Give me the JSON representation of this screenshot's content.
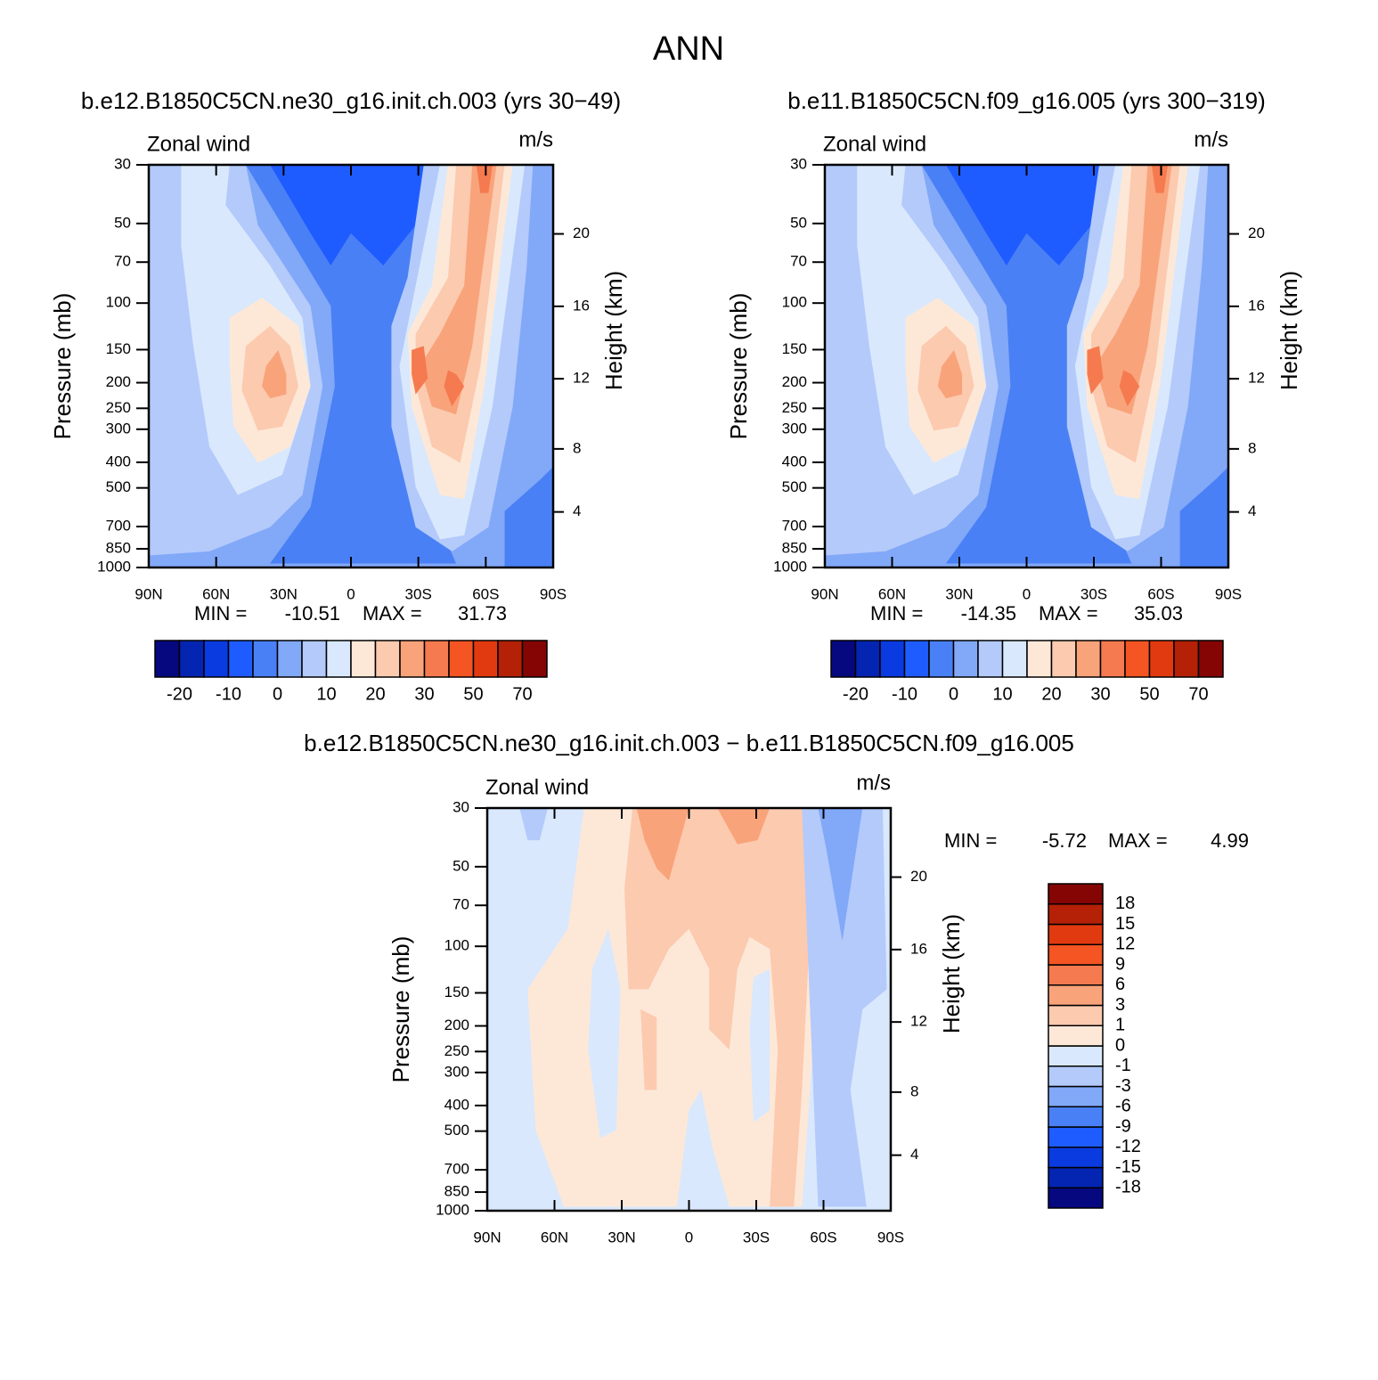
{
  "title": "ANN",
  "chart_data": [
    {
      "type": "contour",
      "title": "b.e12.B1850C5CN.ne30_g16.init.ch.003 (yrs 30−49)",
      "left_label": "Zonal wind",
      "right_label": "m/s",
      "ylabel": "Pressure (mb)",
      "y2label": "Height (km)",
      "xlim": [
        90,
        -90
      ],
      "xticks": [
        {
          "value": 90,
          "label": "90N"
        },
        {
          "value": 60,
          "label": "60N"
        },
        {
          "value": 30,
          "label": "30N"
        },
        0,
        {
          "value": -30,
          "label": "30S"
        },
        {
          "value": -60,
          "label": "60S"
        },
        {
          "value": -90,
          "label": "90S"
        }
      ],
      "ylim": [
        1000,
        30
      ],
      "yscale": "log",
      "yticks": [
        30,
        50,
        70,
        100,
        150,
        200,
        250,
        300,
        400,
        500,
        700,
        850,
        1000
      ],
      "y2ticks": [
        4,
        8,
        12,
        16,
        20
      ],
      "min_label": "MIN =",
      "min": -10.51,
      "max_label": "MAX =",
      "max": 31.73,
      "colorbar": {
        "orientation": "horizontal",
        "levels": [
          -20,
          -15,
          -10,
          -5,
          0,
          5,
          10,
          15,
          20,
          25,
          30,
          40,
          50,
          60,
          70
        ],
        "ticks": [
          -20,
          -10,
          0,
          10,
          20,
          30,
          50,
          70
        ],
        "colors": [
          "#06087f",
          "#0424b2",
          "#0a3be0",
          "#1f5cff",
          "#4a80f5",
          "#82a8f8",
          "#b3cafb",
          "#d9e8fc",
          "#fde8d8",
          "#fccaaf",
          "#f9a37b",
          "#f57a4f",
          "#f45523",
          "#e23a10",
          "#b52106",
          "#850505"
        ]
      }
    },
    {
      "type": "contour",
      "title": "b.e11.B1850C5CN.f09_g16.005 (yrs 300−319)",
      "left_label": "Zonal wind",
      "right_label": "m/s",
      "ylabel": "Pressure (mb)",
      "y2label": "Height (km)",
      "xlim": [
        90,
        -90
      ],
      "xticks": [
        {
          "value": 90,
          "label": "90N"
        },
        {
          "value": 60,
          "label": "60N"
        },
        {
          "value": 30,
          "label": "30N"
        },
        0,
        {
          "value": -30,
          "label": "30S"
        },
        {
          "value": -60,
          "label": "60S"
        },
        {
          "value": -90,
          "label": "90S"
        }
      ],
      "ylim": [
        1000,
        30
      ],
      "yscale": "log",
      "yticks": [
        30,
        50,
        70,
        100,
        150,
        200,
        250,
        300,
        400,
        500,
        700,
        850,
        1000
      ],
      "y2ticks": [
        4,
        8,
        12,
        16,
        20
      ],
      "min_label": "MIN =",
      "min": -14.35,
      "max_label": "MAX =",
      "max": 35.03,
      "colorbar": {
        "orientation": "horizontal",
        "levels": [
          -20,
          -15,
          -10,
          -5,
          0,
          5,
          10,
          15,
          20,
          25,
          30,
          40,
          50,
          60,
          70
        ],
        "ticks": [
          -20,
          -10,
          0,
          10,
          20,
          30,
          50,
          70
        ],
        "colors": [
          "#06087f",
          "#0424b2",
          "#0a3be0",
          "#1f5cff",
          "#4a80f5",
          "#82a8f8",
          "#b3cafb",
          "#d9e8fc",
          "#fde8d8",
          "#fccaaf",
          "#f9a37b",
          "#f57a4f",
          "#f45523",
          "#e23a10",
          "#b52106",
          "#850505"
        ]
      }
    },
    {
      "type": "contour",
      "title": "b.e12.B1850C5CN.ne30_g16.init.ch.003 − b.e11.B1850C5CN.f09_g16.005",
      "left_label": "Zonal wind",
      "right_label": "m/s",
      "ylabel": "Pressure (mb)",
      "y2label": "Height (km)",
      "xlim": [
        90,
        -90
      ],
      "xticks": [
        {
          "value": 90,
          "label": "90N"
        },
        {
          "value": 60,
          "label": "60N"
        },
        {
          "value": 30,
          "label": "30N"
        },
        0,
        {
          "value": -30,
          "label": "30S"
        },
        {
          "value": -60,
          "label": "60S"
        },
        {
          "value": -90,
          "label": "90S"
        }
      ],
      "ylim": [
        1000,
        30
      ],
      "yscale": "log",
      "yticks": [
        30,
        50,
        70,
        100,
        150,
        200,
        250,
        300,
        400,
        500,
        700,
        850,
        1000
      ],
      "y2ticks": [
        4,
        8,
        12,
        16,
        20
      ],
      "min_label": "MIN =",
      "min": -5.72,
      "max_label": "MAX =",
      "max": 4.99,
      "colorbar": {
        "orientation": "vertical",
        "levels": [
          -18,
          -15,
          -12,
          -9,
          -6,
          -3,
          -1,
          0,
          1,
          3,
          6,
          9,
          12,
          15,
          18
        ],
        "ticks": [
          -18,
          -15,
          -12,
          -9,
          -6,
          -3,
          -1,
          0,
          1,
          3,
          6,
          9,
          12,
          15,
          18
        ],
        "colors": [
          "#06087f",
          "#0424b2",
          "#0a3be0",
          "#1f5cff",
          "#4a80f5",
          "#82a8f8",
          "#b3cafb",
          "#d9e8fc",
          "#fde8d8",
          "#fccaaf",
          "#f9a37b",
          "#f57a4f",
          "#f45523",
          "#e23a10",
          "#b52106",
          "#850505"
        ]
      }
    }
  ]
}
